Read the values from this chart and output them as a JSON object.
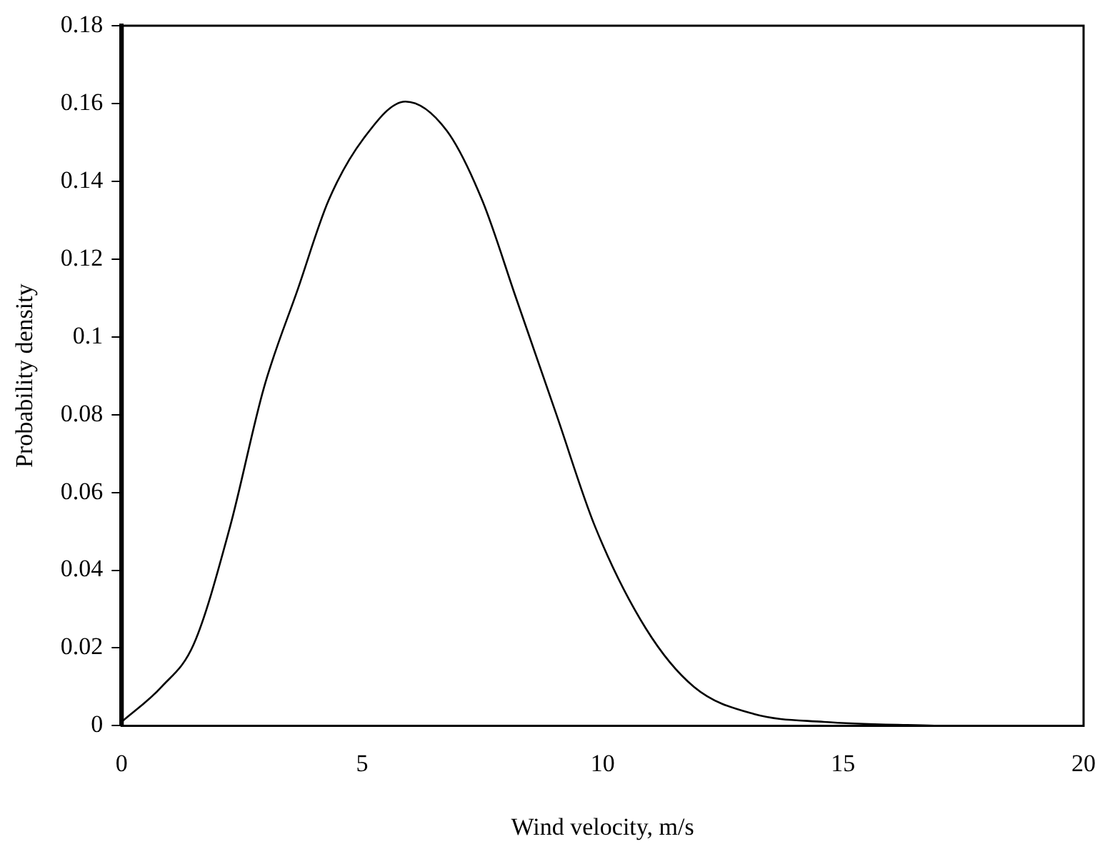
{
  "chart_data": {
    "type": "line",
    "xlabel": "Wind velocity, m/s",
    "ylabel": "Probability density",
    "x": [
      0,
      0.83,
      1.5,
      2.25,
      2.96,
      3.67,
      4.3,
      5.03,
      5.9,
      6.76,
      7.5,
      8.2,
      9.04,
      9.85,
      10.9,
      11.9,
      13.15,
      14.6,
      16.9
    ],
    "series": [
      {
        "color": "#000000",
        "values": [
          0.001,
          0.01,
          0.021,
          0.051,
          0.087,
          0.1125,
          0.135,
          0.151,
          0.1605,
          0.153,
          0.135,
          0.11,
          0.08,
          0.051,
          0.025,
          0.01,
          0.003,
          0.001,
          0
        ]
      }
    ],
    "xlim": [
      0,
      20
    ],
    "xticks": [
      0,
      5,
      10,
      15,
      20
    ],
    "ylim": [
      0,
      0.18
    ],
    "yticks": [
      0,
      0.02,
      0.04,
      0.06,
      0.08,
      0.1,
      0.12,
      0.14,
      0.16,
      0.18
    ],
    "grid": false,
    "legend": false,
    "marker": "none",
    "line_style": "solid"
  }
}
